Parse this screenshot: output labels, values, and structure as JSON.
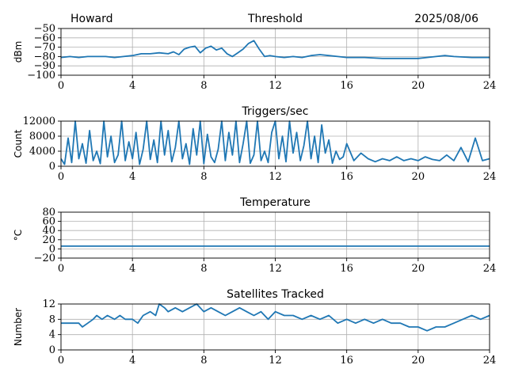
{
  "header": {
    "station": "Howard",
    "date": "2025/08/06"
  },
  "colors": {
    "series": "#1f77b4",
    "grid": "#b0b0b0",
    "axis": "#000000"
  },
  "chart_data": [
    {
      "type": "line",
      "title": "Threshold",
      "xlabel": "",
      "ylabel": "dBm",
      "xlim": [
        0,
        24
      ],
      "ylim": [
        -100,
        -50
      ],
      "xticks": [
        0,
        4,
        8,
        12,
        16,
        20,
        24
      ],
      "yticks": [
        -100,
        -90,
        -80,
        -70,
        -60,
        -50
      ],
      "yticklabels": [
        "−100",
        "−90",
        "−80",
        "−70",
        "−60",
        "−50"
      ],
      "grid": true,
      "series": [
        {
          "x": [
            0,
            0.5,
            1,
            1.5,
            2,
            2.5,
            3,
            3.5,
            4,
            4.5,
            5,
            5.5,
            6,
            6.3,
            6.6,
            6.9,
            7.2,
            7.5,
            7.8,
            8.1,
            8.4,
            8.7,
            9,
            9.3,
            9.6,
            9.9,
            10.2,
            10.5,
            10.8,
            11.1,
            11.4,
            11.7,
            12,
            12.5,
            13,
            13.5,
            14,
            14.5,
            15,
            15.5,
            16,
            17,
            18,
            19,
            20,
            20.5,
            21,
            21.5,
            22,
            23,
            24
          ],
          "y": [
            -81,
            -80,
            -81,
            -80,
            -80,
            -80,
            -81,
            -80,
            -79,
            -77,
            -77,
            -76,
            -77,
            -75,
            -78,
            -72,
            -70,
            -69,
            -76,
            -71,
            -69,
            -73,
            -71,
            -77,
            -80,
            -76,
            -72,
            -66,
            -63,
            -72,
            -80,
            -79,
            -80,
            -81,
            -80,
            -81,
            -79,
            -78,
            -79,
            -80,
            -81,
            -81,
            -82,
            -82,
            -82,
            -81,
            -80,
            -79,
            -80,
            -81,
            -81
          ]
        }
      ]
    },
    {
      "type": "line",
      "title": "Triggers/sec",
      "xlabel": "",
      "ylabel": "Count",
      "xlim": [
        0,
        24
      ],
      "ylim": [
        0,
        12000
      ],
      "xticks": [
        0,
        4,
        8,
        12,
        16,
        20,
        24
      ],
      "yticks": [
        0,
        4000,
        8000,
        12000
      ],
      "yticklabels": [
        "0",
        "4000",
        "8000",
        "12000"
      ],
      "grid": true,
      "series": [
        {
          "x": [
            0,
            0.2,
            0.4,
            0.6,
            0.8,
            1.0,
            1.2,
            1.4,
            1.6,
            1.8,
            2.0,
            2.2,
            2.4,
            2.6,
            2.8,
            3.0,
            3.2,
            3.4,
            3.6,
            3.8,
            4.0,
            4.2,
            4.4,
            4.6,
            4.8,
            5.0,
            5.2,
            5.4,
            5.6,
            5.8,
            6.0,
            6.2,
            6.4,
            6.6,
            6.8,
            7.0,
            7.2,
            7.4,
            7.6,
            7.8,
            8.0,
            8.2,
            8.4,
            8.6,
            8.8,
            9.0,
            9.2,
            9.4,
            9.6,
            9.8,
            10.0,
            10.2,
            10.4,
            10.6,
            10.8,
            11.0,
            11.2,
            11.4,
            11.6,
            11.8,
            12.0,
            12.2,
            12.4,
            12.6,
            12.8,
            13.0,
            13.2,
            13.4,
            13.6,
            13.8,
            14.0,
            14.2,
            14.4,
            14.6,
            14.8,
            15.0,
            15.2,
            15.4,
            15.6,
            15.8,
            16.0,
            16.4,
            16.8,
            17.2,
            17.6,
            18.0,
            18.4,
            18.8,
            19.2,
            19.6,
            20.0,
            20.4,
            20.8,
            21.2,
            21.6,
            22.0,
            22.4,
            22.8,
            23.2,
            23.6,
            24.0
          ],
          "y": [
            2000,
            500,
            7500,
            1000,
            12000,
            2000,
            6000,
            800,
            9500,
            1500,
            4000,
            700,
            12000,
            2500,
            8000,
            1000,
            3000,
            12000,
            1500,
            6500,
            2000,
            9000,
            500,
            4500,
            12000,
            1800,
            7000,
            1000,
            12000,
            3000,
            9500,
            1200,
            5000,
            12000,
            2000,
            6000,
            500,
            10000,
            3000,
            12000,
            700,
            8500,
            2500,
            1000,
            4500,
            12000,
            1500,
            9000,
            3000,
            12000,
            1000,
            6000,
            12000,
            800,
            3000,
            12000,
            1500,
            4000,
            1000,
            9000,
            12000,
            2000,
            8000,
            1200,
            12000,
            3500,
            9000,
            1500,
            5500,
            12000,
            2000,
            8000,
            1000,
            11000,
            3500,
            7000,
            800,
            4000,
            1800,
            2500,
            6000,
            1500,
            3500,
            2000,
            1200,
            2000,
            1500,
            2500,
            1500,
            2000,
            1500,
            2500,
            1800,
            1500,
            3000,
            1500,
            5000,
            1200,
            7500,
            1500,
            2000
          ]
        }
      ]
    },
    {
      "type": "line",
      "title": "Temperature",
      "xlabel": "",
      "ylabel": "°C",
      "xlim": [
        0,
        24
      ],
      "ylim": [
        -20,
        80
      ],
      "xticks": [
        0,
        4,
        8,
        12,
        16,
        20,
        24
      ],
      "yticks": [
        -20,
        0,
        20,
        40,
        60,
        80
      ],
      "yticklabels": [
        "−20",
        "0",
        "20",
        "40",
        "60",
        "80"
      ],
      "grid": true,
      "series": [
        {
          "x": [
            0,
            24
          ],
          "y": [
            6,
            6
          ]
        }
      ]
    },
    {
      "type": "line",
      "title": "Satellites Tracked",
      "xlabel": "",
      "ylabel": "Number",
      "xlim": [
        0,
        24
      ],
      "ylim": [
        0,
        12
      ],
      "xticks": [
        0,
        4,
        8,
        12,
        16,
        20,
        24
      ],
      "yticks": [
        0,
        4,
        8,
        12
      ],
      "yticklabels": [
        "0",
        "4",
        "8",
        "12"
      ],
      "grid": true,
      "series": [
        {
          "x": [
            0,
            0.5,
            1,
            1.2,
            1.5,
            1.8,
            2,
            2.3,
            2.6,
            3,
            3.3,
            3.6,
            4,
            4.3,
            4.6,
            5,
            5.3,
            5.5,
            5.8,
            6,
            6.4,
            6.8,
            7.2,
            7.6,
            8,
            8.4,
            8.8,
            9.2,
            9.6,
            10,
            10.4,
            10.8,
            11.2,
            11.6,
            12,
            12.5,
            13,
            13.5,
            14,
            14.5,
            15,
            15.5,
            16,
            16.5,
            17,
            17.5,
            18,
            18.5,
            19,
            19.5,
            20,
            20.5,
            21,
            21.5,
            22,
            22.5,
            23,
            23.5,
            24
          ],
          "y": [
            7,
            7,
            7,
            6,
            7,
            8,
            9,
            8,
            9,
            8,
            9,
            8,
            8,
            7,
            9,
            10,
            9,
            12,
            11,
            10,
            11,
            10,
            11,
            12,
            10,
            11,
            10,
            9,
            10,
            11,
            10,
            9,
            10,
            8,
            10,
            9,
            9,
            8,
            9,
            8,
            9,
            7,
            8,
            7,
            8,
            7,
            8,
            7,
            7,
            6,
            6,
            5,
            6,
            6,
            7,
            8,
            9,
            8,
            9
          ]
        }
      ]
    }
  ]
}
